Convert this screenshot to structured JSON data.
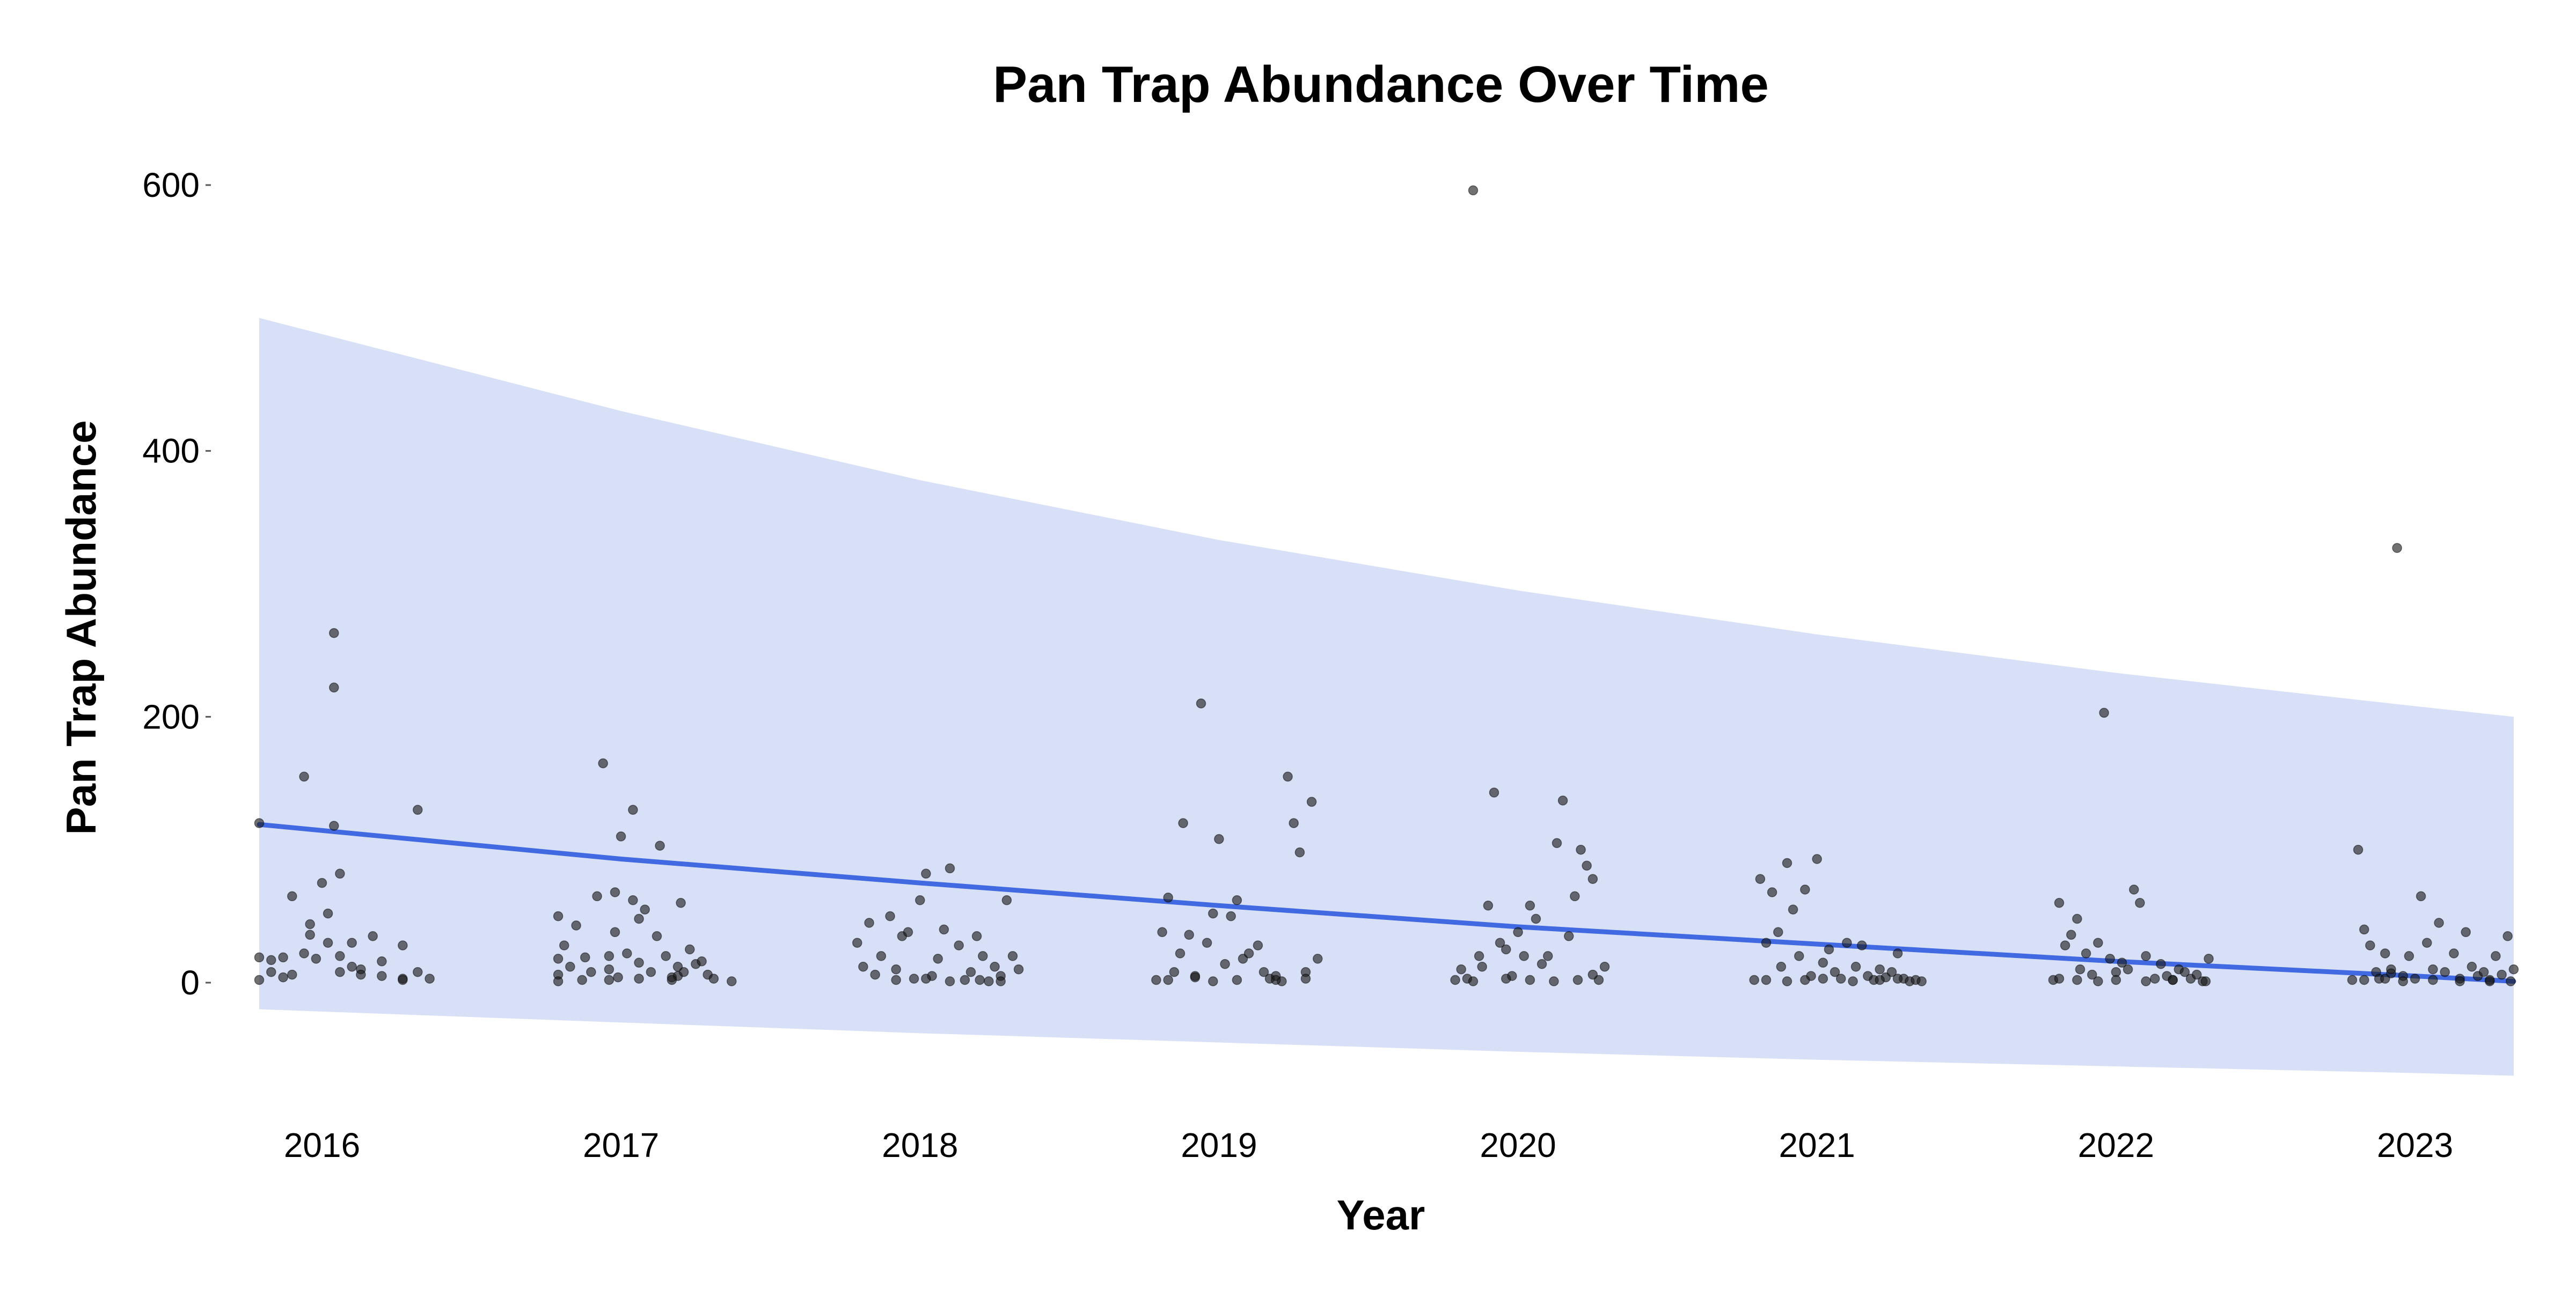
{
  "chart_data": {
    "type": "scatter",
    "title": "Pan Trap Abundance Over Time",
    "xlabel": "Year",
    "ylabel": "Pan Trap Abundance",
    "x_ticks": [
      "2016",
      "2017",
      "2018",
      "2019",
      "2020",
      "2021",
      "2022",
      "2023"
    ],
    "y_ticks": [
      "0",
      "200",
      "400",
      "600"
    ],
    "ylim": [
      -100,
      630
    ],
    "xlim": [
      2015.7,
      2023.5
    ],
    "grid": false,
    "legend": "none",
    "colors": {
      "points": "#1a1a1a",
      "trend": "#4169E1",
      "band": "#D8E0F7"
    },
    "trend": {
      "x": [
        2015.79,
        2017.0,
        2018.0,
        2019.0,
        2020.0,
        2021.0,
        2022.0,
        2023.0,
        2023.33
      ],
      "y": [
        119,
        93,
        75,
        58,
        42,
        29,
        16,
        5,
        1
      ]
    },
    "band": {
      "x": [
        2015.79,
        2017.0,
        2018.0,
        2019.0,
        2020.0,
        2021.0,
        2022.0,
        2023.0,
        2023.33
      ],
      "upper": [
        500,
        430,
        378,
        333,
        295,
        262,
        233,
        208,
        200
      ],
      "lower": [
        -20,
        -30,
        -38,
        -45,
        -52,
        -58,
        -63,
        -68,
        -70
      ]
    },
    "series": [
      {
        "x": [
          2015.79,
          2015.79,
          2015.79,
          2015.83,
          2015.83,
          2015.87,
          2015.87,
          2015.9,
          2015.9,
          2015.94,
          2015.94,
          2015.96,
          2015.96,
          2015.98,
          2016.0,
          2016.02,
          2016.02,
          2016.04,
          2016.04,
          2016.04,
          2016.06,
          2016.06,
          2016.06,
          2016.1,
          2016.1,
          2016.13,
          2016.13,
          2016.17,
          2016.2,
          2016.2,
          2016.27,
          2016.27,
          2016.32,
          2016.32,
          2016.27,
          2016.36,
          2016.79,
          2016.79,
          2016.79,
          2016.81,
          2016.83,
          2016.85,
          2016.87,
          2016.88,
          2016.9,
          2016.92,
          2016.94,
          2016.96,
          2016.96,
          2016.98,
          2016.98,
          2016.99,
          2017.0,
          2017.02,
          2017.04,
          2017.04,
          2017.06,
          2017.06,
          2017.08,
          2017.1,
          2017.12,
          2017.13,
          2017.15,
          2017.17,
          2017.19,
          2017.19,
          2017.2,
          2017.21,
          2017.23,
          2017.25,
          2017.27,
          2017.29,
          2017.31,
          2016.79,
          2016.96,
          2017.06,
          2017.17,
          2017.37,
          2017.79,
          2017.81,
          2017.83,
          2017.85,
          2017.87,
          2017.9,
          2017.92,
          2017.94,
          2017.96,
          2017.98,
          2018.0,
          2018.02,
          2018.04,
          2018.06,
          2018.08,
          2018.1,
          2018.13,
          2018.15,
          2018.17,
          2018.19,
          2018.21,
          2018.23,
          2018.25,
          2018.27,
          2018.29,
          2018.31,
          2018.33,
          2017.92,
          2018.02,
          2018.1,
          2018.2,
          2018.27,
          2018.79,
          2018.81,
          2018.83,
          2018.85,
          2018.87,
          2018.88,
          2018.9,
          2018.92,
          2018.94,
          2018.96,
          2018.98,
          2019.0,
          2019.02,
          2019.04,
          2019.06,
          2019.08,
          2019.1,
          2019.13,
          2019.15,
          2019.17,
          2019.19,
          2019.21,
          2019.23,
          2019.25,
          2019.27,
          2019.29,
          2019.31,
          2019.33,
          2018.83,
          2018.92,
          2018.98,
          2019.06,
          2019.19,
          2019.29,
          2019.79,
          2019.81,
          2019.83,
          2019.85,
          2019.87,
          2019.88,
          2019.9,
          2019.92,
          2019.94,
          2019.96,
          2019.98,
          2020.0,
          2020.02,
          2020.04,
          2020.06,
          2020.08,
          2020.1,
          2020.13,
          2020.15,
          2020.17,
          2020.19,
          2020.21,
          2020.23,
          2020.25,
          2020.27,
          2020.29,
          2019.85,
          2019.96,
          2020.04,
          2020.12,
          2020.2,
          2020.25,
          2020.79,
          2020.81,
          2020.83,
          2020.85,
          2020.87,
          2020.88,
          2020.9,
          2020.92,
          2020.94,
          2020.96,
          2020.98,
          2021.0,
          2021.02,
          2021.04,
          2021.06,
          2021.08,
          2021.1,
          2021.13,
          2021.15,
          2021.17,
          2021.19,
          2021.21,
          2021.23,
          2021.25,
          2021.27,
          2021.29,
          2021.31,
          2021.33,
          2021.35,
          2020.83,
          2020.9,
          2020.96,
          2021.02,
          2021.12,
          2021.21,
          2021.27,
          2021.79,
          2021.81,
          2021.83,
          2021.85,
          2021.87,
          2021.88,
          2021.9,
          2021.92,
          2021.94,
          2021.96,
          2021.98,
          2022.0,
          2022.02,
          2022.04,
          2022.06,
          2022.08,
          2022.1,
          2022.13,
          2022.15,
          2022.17,
          2022.19,
          2022.21,
          2022.23,
          2022.25,
          2022.27,
          2022.29,
          2022.31,
          2021.81,
          2021.87,
          2021.94,
          2022.0,
          2022.1,
          2022.19,
          2022.3,
          2022.79,
          2022.81,
          2022.83,
          2022.85,
          2022.87,
          2022.88,
          2022.9,
          2022.92,
          2022.94,
          2022.96,
          2022.98,
          2023.0,
          2023.02,
          2023.04,
          2023.06,
          2023.08,
          2023.1,
          2023.13,
          2023.15,
          2023.17,
          2023.19,
          2023.21,
          2023.23,
          2023.25,
          2023.27,
          2023.29,
          2023.31,
          2023.33,
          2022.83,
          2022.9,
          2022.96,
          2023.06,
          2023.15,
          2023.25,
          2023.32,
          2022.92
        ],
        "y": [
          120,
          19,
          2,
          8,
          17,
          4,
          19,
          6,
          65,
          22,
          155,
          44,
          36,
          18,
          75,
          30,
          52,
          263,
          222,
          118,
          82,
          20,
          8,
          30,
          12,
          10,
          6,
          35,
          16,
          5,
          28,
          3,
          130,
          8,
          2,
          3,
          50,
          18,
          6,
          28,
          12,
          43,
          2,
          19,
          8,
          65,
          165,
          20,
          10,
          38,
          68,
          4,
          110,
          22,
          130,
          62,
          15,
          48,
          55,
          8,
          35,
          103,
          20,
          4,
          5,
          12,
          60,
          8,
          25,
          14,
          16,
          6,
          3,
          1,
          2,
          3,
          2,
          1,
          30,
          12,
          45,
          6,
          20,
          50,
          10,
          35,
          38,
          3,
          62,
          82,
          5,
          18,
          40,
          86,
          28,
          2,
          8,
          35,
          20,
          1,
          12,
          5,
          62,
          20,
          10,
          2,
          3,
          1,
          2,
          1,
          2,
          38,
          64,
          8,
          22,
          120,
          36,
          5,
          210,
          30,
          52,
          108,
          14,
          50,
          62,
          18,
          22,
          28,
          8,
          3,
          5,
          1,
          155,
          120,
          98,
          8,
          136,
          18,
          2,
          4,
          1,
          2,
          2,
          3,
          2,
          10,
          3,
          596,
          20,
          12,
          58,
          143,
          30,
          25,
          5,
          38,
          20,
          58,
          48,
          14,
          20,
          105,
          137,
          35,
          65,
          100,
          88,
          78,
          2,
          12,
          1,
          3,
          2,
          1,
          2,
          6,
          2,
          78,
          30,
          68,
          38,
          12,
          90,
          55,
          20,
          70,
          5,
          93,
          15,
          25,
          8,
          3,
          30,
          12,
          28,
          5,
          2,
          10,
          4,
          8,
          22,
          3,
          1,
          2,
          1,
          2,
          1,
          2,
          3,
          1,
          2,
          3,
          2,
          60,
          28,
          36,
          48,
          10,
          22,
          6,
          30,
          203,
          18,
          8,
          15,
          10,
          70,
          60,
          20,
          3,
          14,
          5,
          2,
          10,
          8,
          3,
          6,
          1,
          18,
          3,
          2,
          1,
          2,
          1,
          2,
          1,
          2,
          100,
          40,
          28,
          8,
          3,
          22,
          10,
          327,
          5,
          20,
          3,
          65,
          30,
          10,
          45,
          8,
          22,
          3,
          38,
          12,
          5,
          8,
          1,
          20,
          6,
          35,
          10,
          2,
          3,
          1,
          2,
          1,
          2,
          1,
          7
        ]
      }
    ]
  }
}
